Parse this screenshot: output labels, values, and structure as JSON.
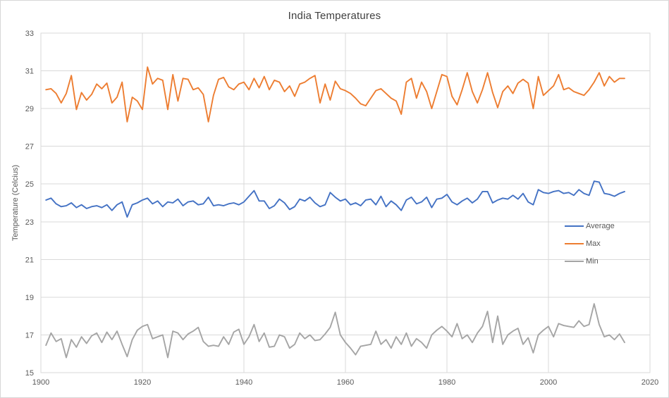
{
  "chart_data": {
    "type": "line",
    "title": "India Temperatures",
    "xlabel": "",
    "ylabel": "Temperature  (Celcius)",
    "xlim": [
      1900,
      2020
    ],
    "ylim": [
      15,
      33
    ],
    "xticks": [
      1900,
      1920,
      1940,
      1960,
      1980,
      2000,
      2020
    ],
    "yticks": [
      15,
      17,
      19,
      21,
      23,
      25,
      27,
      29,
      31,
      33
    ],
    "grid": true,
    "legend_position": "inside-right",
    "x_start": 1901,
    "x_step": 1,
    "colors": {
      "gridline": "#d9d9d9",
      "plot_border": "#d9d9d9",
      "tick_label": "#595959",
      "title": "#404040",
      "background": "#ffffff"
    },
    "series": [
      {
        "name": "Average",
        "color": "#4472C4",
        "values": [
          24.15,
          24.25,
          23.95,
          23.8,
          23.85,
          24.0,
          23.75,
          23.9,
          23.7,
          23.8,
          23.85,
          23.75,
          23.9,
          23.6,
          23.9,
          24.05,
          23.25,
          23.9,
          24.0,
          24.15,
          24.25,
          23.95,
          24.1,
          23.8,
          24.05,
          24.0,
          24.2,
          23.85,
          24.05,
          24.1,
          23.9,
          23.95,
          24.3,
          23.85,
          23.9,
          23.85,
          23.95,
          24.0,
          23.9,
          24.05,
          24.35,
          24.65,
          24.1,
          24.1,
          23.7,
          23.85,
          24.2,
          24.0,
          23.65,
          23.8,
          24.2,
          24.1,
          24.3,
          24.0,
          23.8,
          23.9,
          24.55,
          24.3,
          24.1,
          24.2,
          23.9,
          24.0,
          23.85,
          24.15,
          24.2,
          23.9,
          24.35,
          23.8,
          24.1,
          23.9,
          23.6,
          24.15,
          24.3,
          23.95,
          24.05,
          24.3,
          23.75,
          24.2,
          24.25,
          24.45,
          24.05,
          23.9,
          24.1,
          24.25,
          24.0,
          24.2,
          24.6,
          24.6,
          24.0,
          24.15,
          24.25,
          24.2,
          24.4,
          24.2,
          24.5,
          24.05,
          23.9,
          24.7,
          24.55,
          24.5,
          24.6,
          24.65,
          24.5,
          24.55,
          24.4,
          24.7,
          24.5,
          24.4,
          25.15,
          25.1,
          24.5,
          24.45,
          24.35,
          24.5,
          24.6
        ]
      },
      {
        "name": "Max",
        "color": "#ED7D31",
        "values": [
          30.0,
          30.05,
          29.8,
          29.3,
          29.8,
          30.75,
          28.95,
          29.85,
          29.45,
          29.75,
          30.3,
          30.05,
          30.35,
          29.3,
          29.6,
          30.4,
          28.3,
          29.6,
          29.4,
          28.95,
          31.2,
          30.3,
          30.6,
          30.5,
          28.95,
          30.8,
          29.4,
          30.6,
          30.55,
          30.0,
          30.1,
          29.75,
          28.3,
          29.7,
          30.55,
          30.65,
          30.15,
          30.0,
          30.3,
          30.4,
          30.0,
          30.6,
          30.1,
          30.7,
          30.0,
          30.5,
          30.4,
          29.9,
          30.2,
          29.65,
          30.3,
          30.4,
          30.6,
          30.75,
          29.3,
          30.3,
          29.45,
          30.45,
          30.05,
          29.95,
          29.8,
          29.55,
          29.25,
          29.15,
          29.55,
          29.95,
          30.05,
          29.8,
          29.55,
          29.4,
          28.7,
          30.4,
          30.6,
          29.55,
          30.4,
          29.9,
          29.0,
          29.9,
          30.8,
          30.7,
          29.65,
          29.2,
          30.0,
          30.9,
          29.9,
          29.3,
          30.0,
          30.9,
          29.85,
          29.05,
          29.9,
          30.2,
          29.8,
          30.35,
          30.55,
          30.35,
          29.0,
          30.7,
          29.7,
          29.95,
          30.2,
          30.8,
          30.0,
          30.1,
          29.9,
          29.8,
          29.7,
          30.0,
          30.4,
          30.9,
          30.2,
          30.7,
          30.4,
          30.6,
          30.6
        ]
      },
      {
        "name": "Min",
        "color": "#A5A5A5",
        "values": [
          16.45,
          17.1,
          16.65,
          16.8,
          15.8,
          16.75,
          16.35,
          16.9,
          16.55,
          16.95,
          17.1,
          16.6,
          17.15,
          16.75,
          17.2,
          16.5,
          15.85,
          16.75,
          17.25,
          17.45,
          17.55,
          16.8,
          16.9,
          17.0,
          15.8,
          17.2,
          17.1,
          16.75,
          17.05,
          17.2,
          17.4,
          16.65,
          16.4,
          16.45,
          16.4,
          16.9,
          16.5,
          17.15,
          17.3,
          16.5,
          16.9,
          17.55,
          16.65,
          17.1,
          16.35,
          16.4,
          17.0,
          16.9,
          16.3,
          16.5,
          17.1,
          16.8,
          17.0,
          16.7,
          16.75,
          17.05,
          17.4,
          18.2,
          17.0,
          16.6,
          16.3,
          15.95,
          16.4,
          16.45,
          16.5,
          17.2,
          16.5,
          16.75,
          16.3,
          16.9,
          16.5,
          17.1,
          16.4,
          16.8,
          16.6,
          16.3,
          17.0,
          17.25,
          17.45,
          17.2,
          16.9,
          17.6,
          16.8,
          17.0,
          16.6,
          17.1,
          17.45,
          18.25,
          16.6,
          18.0,
          16.5,
          17.0,
          17.2,
          17.35,
          16.5,
          16.85,
          16.05,
          17.0,
          17.25,
          17.45,
          16.9,
          17.6,
          17.5,
          17.45,
          17.4,
          17.75,
          17.45,
          17.55,
          18.65,
          17.55,
          16.9,
          17.0,
          16.75,
          17.05,
          16.6
        ]
      }
    ]
  }
}
